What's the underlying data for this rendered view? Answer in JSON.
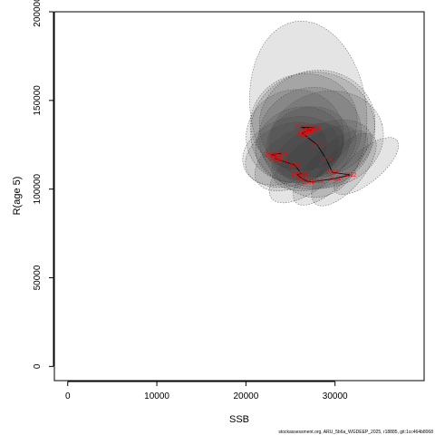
{
  "chart_data": {
    "type": "scatter",
    "title": "",
    "xlabel": "SSB",
    "ylabel": "R(age 5)",
    "xlim": [
      -1500,
      40000
    ],
    "ylim": [
      -8000,
      200000
    ],
    "xticks": [
      0,
      10000,
      20000,
      30000
    ],
    "yticks": [
      0,
      50000,
      100000,
      150000,
      200000
    ],
    "grid": false,
    "legend": "none",
    "colors": {
      "ellipse_fill": "#303030",
      "ellipse_stroke": "#555555",
      "path": "#000000",
      "labels": "#ff0000"
    },
    "points": [
      {
        "year": "2000",
        "ssb": 24000,
        "rec": 120000
      },
      {
        "year": "2001",
        "ssb": 22800,
        "rec": 119500
      },
      {
        "year": "2002",
        "ssb": 23400,
        "rec": 118500
      },
      {
        "year": "2003",
        "ssb": 23300,
        "rec": 117200
      },
      {
        "year": "2004",
        "ssb": 24000,
        "rec": 116000
      },
      {
        "year": "2005",
        "ssb": 25500,
        "rec": 113500
      },
      {
        "year": "2006",
        "ssb": 26200,
        "rec": 108700
      },
      {
        "year": "2007",
        "ssb": 25700,
        "rec": 108200
      },
      {
        "year": "2008",
        "ssb": 26300,
        "rec": 106000
      },
      {
        "year": "2009",
        "ssb": 27000,
        "rec": 104000
      },
      {
        "year": "2010",
        "ssb": 28000,
        "rec": 104500
      },
      {
        "year": "2011",
        "ssb": 30000,
        "rec": 106000
      },
      {
        "year": "2012",
        "ssb": 31700,
        "rec": 108000
      },
      {
        "year": "2013",
        "ssb": 29700,
        "rec": 109500
      },
      {
        "year": "2014",
        "ssb": 29000,
        "rec": 117000
      },
      {
        "year": "2015",
        "ssb": 28000,
        "rec": 125000
      },
      {
        "year": "2016",
        "ssb": 26700,
        "rec": 130000
      },
      {
        "year": "2017",
        "ssb": 26300,
        "rec": 131500
      },
      {
        "year": "2018",
        "ssb": 26900,
        "rec": 133000
      },
      {
        "year": "2019",
        "ssb": 27300,
        "rec": 132800
      },
      {
        "year": "2020",
        "ssb": 26800,
        "rec": 132600
      },
      {
        "year": "2021",
        "ssb": 27400,
        "rec": 133200
      },
      {
        "year": "2022",
        "ssb": 26200,
        "rec": 135000
      },
      {
        "year": "2023",
        "ssb": 27700,
        "rec": 134500
      }
    ],
    "ellipses": [
      {
        "ssb": 27000,
        "rec": 145000,
        "rx": 6500,
        "ry": 50000,
        "rot": -8
      },
      {
        "ssb": 27500,
        "rec": 133000,
        "rx": 7000,
        "ry": 33000,
        "rot": -12
      },
      {
        "ssb": 28000,
        "rec": 137000,
        "rx": 6500,
        "ry": 30000,
        "rot": -8
      },
      {
        "ssb": 26500,
        "rec": 138000,
        "rx": 6000,
        "ry": 27000,
        "rot": -10
      },
      {
        "ssb": 27200,
        "rec": 131000,
        "rx": 5800,
        "ry": 26000,
        "rot": -20
      },
      {
        "ssb": 25500,
        "rec": 130000,
        "rx": 5500,
        "ry": 26000,
        "rot": -15
      },
      {
        "ssb": 26000,
        "rec": 125000,
        "rx": 5000,
        "ry": 21000,
        "rot": -18
      },
      {
        "ssb": 24500,
        "rec": 120000,
        "rx": 4800,
        "ry": 16000,
        "rot": -25
      },
      {
        "ssb": 25000,
        "rec": 121000,
        "rx": 5500,
        "ry": 19000,
        "rot": -18
      },
      {
        "ssb": 26000,
        "rec": 118000,
        "rx": 5500,
        "ry": 15000,
        "rot": -30
      },
      {
        "ssb": 27500,
        "rec": 114000,
        "rx": 6000,
        "ry": 13000,
        "rot": -40
      },
      {
        "ssb": 29500,
        "rec": 112000,
        "rx": 5500,
        "ry": 11000,
        "rot": -45
      },
      {
        "ssb": 31000,
        "rec": 111000,
        "rx": 5000,
        "ry": 11000,
        "rot": -50
      },
      {
        "ssb": 33500,
        "rec": 113000,
        "rx": 4500,
        "ry": 9000,
        "rot": -40
      },
      {
        "ssb": 28500,
        "rec": 119000,
        "rx": 6000,
        "ry": 17000,
        "rot": -25
      },
      {
        "ssb": 27000,
        "rec": 126000,
        "rx": 4800,
        "ry": 20000,
        "rot": -18
      },
      {
        "ssb": 29000,
        "rec": 128000,
        "rx": 6500,
        "ry": 27000,
        "rot": -15
      }
    ]
  },
  "footer": {
    "credit": "stockassessment.org, ARU_5b6a_WGDEEP_2025, r18885, git:1cc464b8068"
  }
}
